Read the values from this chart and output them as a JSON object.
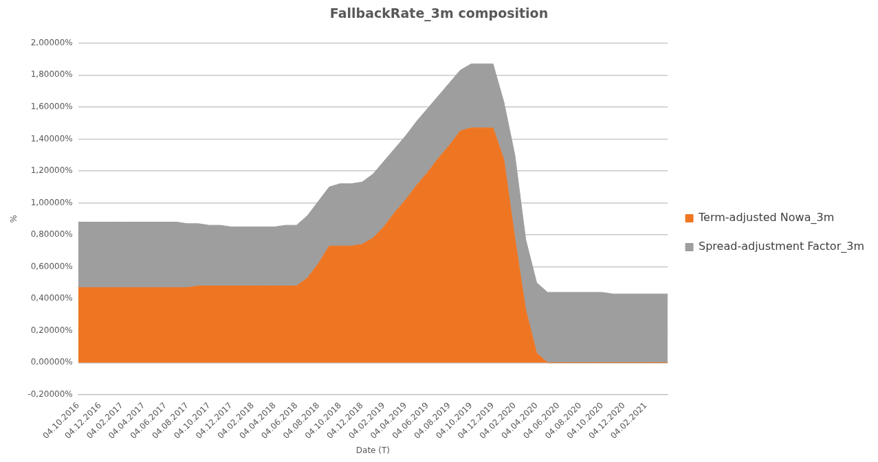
{
  "chart_data": {
    "type": "area",
    "title": "FallbackRate_3m composition",
    "xlabel": "Date (T)",
    "ylabel": "%",
    "categories": [
      "04.10.2016",
      null,
      "04.12.2016",
      null,
      "04.02.2017",
      null,
      "04.04.2017",
      null,
      "04.06.2017",
      null,
      "04.08.2017",
      null,
      "04.10.2017",
      null,
      "04.12.2017",
      null,
      "04.02.2018",
      null,
      "04.04.2018",
      null,
      "04.06.2018",
      null,
      "04.08.2018",
      null,
      "04.10.2018",
      null,
      "04.12.2018",
      null,
      "04.02.2019",
      null,
      "04.04.2019",
      null,
      "04.06.2019",
      null,
      "04.08.2019",
      null,
      "04.10.2019",
      null,
      "04.12.2019",
      null,
      "04.02.2020",
      null,
      "04.04.2020",
      null,
      "04.06.2020",
      null,
      "04.08.2020",
      null,
      "04.10.2020",
      null,
      "04.12.2020",
      null,
      "04.02.2021",
      null,
      null
    ],
    "series": [
      {
        "name": "Term-adjusted Nowa_3m",
        "color": "#ee7623",
        "values": [
          0.47,
          0.47,
          0.47,
          0.47,
          0.47,
          0.47,
          0.47,
          0.47,
          0.47,
          0.47,
          0.47,
          0.48,
          0.48,
          0.48,
          0.48,
          0.48,
          0.48,
          0.48,
          0.48,
          0.48,
          0.48,
          0.53,
          0.62,
          0.73,
          0.73,
          0.73,
          0.74,
          0.78,
          0.85,
          0.94,
          1.02,
          1.11,
          1.19,
          1.28,
          1.36,
          1.45,
          1.47,
          1.47,
          1.47,
          1.27,
          0.78,
          0.33,
          0.06,
          0,
          0,
          0,
          0,
          0,
          0,
          0,
          0,
          0,
          0,
          0,
          0
        ]
      },
      {
        "name": "Spread-adjustment Factor_3m",
        "color": "#9e9e9e",
        "values": [
          0.41,
          0.41,
          0.41,
          0.41,
          0.41,
          0.41,
          0.41,
          0.41,
          0.41,
          0.41,
          0.4,
          0.39,
          0.38,
          0.38,
          0.37,
          0.37,
          0.37,
          0.37,
          0.37,
          0.38,
          0.38,
          0.39,
          0.39,
          0.37,
          0.39,
          0.39,
          0.39,
          0.4,
          0.41,
          0.4,
          0.4,
          0.4,
          0.4,
          0.39,
          0.39,
          0.38,
          0.4,
          0.4,
          0.4,
          0.36,
          0.52,
          0.44,
          0.44,
          0.44,
          0.44,
          0.44,
          0.44,
          0.44,
          0.44,
          0.43,
          0.43,
          0.43,
          0.43,
          0.43,
          0.43
        ]
      }
    ],
    "stacked": true,
    "ylim": [
      -0.2,
      2.0
    ],
    "yticks": [
      {
        "value": -0.2,
        "label": "-0,20000%"
      },
      {
        "value": 0,
        "label": "0,00000%"
      },
      {
        "value": 0.2,
        "label": "0,20000%"
      },
      {
        "value": 0.4,
        "label": "0,40000%"
      },
      {
        "value": 0.6,
        "label": "0,60000%"
      },
      {
        "value": 0.8,
        "label": "0,80000%"
      },
      {
        "value": 1.0,
        "label": "1,00000%"
      },
      {
        "value": 1.2,
        "label": "1,20000%"
      },
      {
        "value": 1.4,
        "label": "1,40000%"
      },
      {
        "value": 1.6,
        "label": "1,60000%"
      },
      {
        "value": 1.8,
        "label": "1,80000%"
      },
      {
        "value": 2.0,
        "label": "2,00000%"
      }
    ],
    "grid": "y",
    "legend": "right",
    "marker": "none"
  }
}
